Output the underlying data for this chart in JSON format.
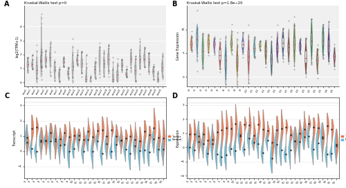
{
  "panel_A": {
    "title": "Kruskal-Wallis test p=0",
    "ylabel": "log2(TPM+1)",
    "n_violins": 31,
    "bg_color": "#f0f0f0",
    "violin_color": "#c8c8c8",
    "label": "A",
    "ylim": [
      -0.3,
      5.5
    ],
    "yticks": [
      0,
      1,
      2,
      3,
      4
    ]
  },
  "panel_B": {
    "title": "Kruskal-Wallis test p=1.8e−20",
    "ylabel": "Gene Expression",
    "n_violins": 26,
    "bg_color": "#f0f0f0",
    "violin_colors": [
      "#e8734a",
      "#5ba3c9",
      "#5faa6a",
      "#d4a020",
      "#9966bb",
      "#cc4444",
      "#4488aa",
      "#88aa44",
      "#aa7733",
      "#5566cc",
      "#cc5566",
      "#55aaaa",
      "#aacc55",
      "#776633",
      "#336677",
      "#663388",
      "#445588",
      "#885544",
      "#668844",
      "#443388",
      "#884433",
      "#338855",
      "#886633",
      "#338866",
      "#553388",
      "#883355"
    ],
    "label": "B",
    "ylim": [
      -2,
      15
    ],
    "yticks": [
      0,
      5,
      10
    ]
  },
  "panel_C": {
    "ylabel": "Transcript",
    "n_pairs": 30,
    "tumor_color": "#e8734a",
    "normal_color": "#62b8d4",
    "bg_color": "#ffffff",
    "label": "C",
    "legend_tumor": "Tumor",
    "legend_normal": "Normal",
    "ylim": [
      -1.8,
      3.5
    ],
    "yticks": [
      -1,
      0,
      1,
      2,
      3
    ]
  },
  "panel_D": {
    "ylabel": "Expression",
    "n_pairs": 33,
    "tumor_color": "#e8734a",
    "normal_color": "#62b8d4",
    "bg_color": "#ffffff",
    "label": "D",
    "legend_tumor": "Tumor",
    "legend_normal": "Normal",
    "ylim": [
      -2.2,
      3.5
    ],
    "yticks": [
      -2,
      -1,
      0,
      1,
      2,
      3
    ]
  },
  "fig_bg": "#ffffff"
}
